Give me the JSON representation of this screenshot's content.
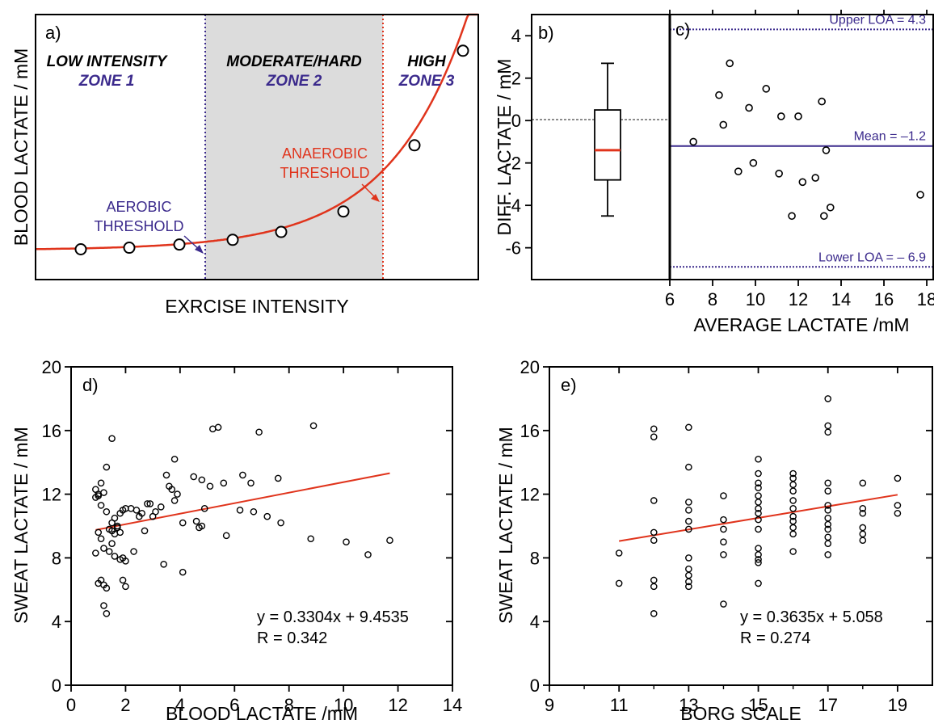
{
  "colors": {
    "red": "#e0341c",
    "purple": "#3b2a8c",
    "gray_zone": "#dcdcdc",
    "black": "#000000"
  },
  "chart_data": [
    {
      "id": "a",
      "type": "line",
      "panel_label": "a)",
      "xlabel": "EXRCISE INTENSITY",
      "ylabel": "BLOOD LACTATE / mM",
      "x_ticks_shown": false,
      "y_ticks_shown": false,
      "zones": [
        {
          "title": "LOW INTENSITY",
          "subtitle": "ZONE 1"
        },
        {
          "title": "MODERATE/HARD",
          "subtitle": "ZONE 2"
        },
        {
          "title": "HIGH",
          "subtitle": "ZONE 3"
        }
      ],
      "thresholds": [
        {
          "lines": [
            "AEROBIC",
            "THRESHOLD"
          ],
          "color": "#3b2a8c"
        },
        {
          "lines": [
            "ANAEROBIC",
            "THRESHOLD"
          ],
          "color": "#e0341c"
        }
      ],
      "points": [
        1.0,
        1.1,
        1.3,
        1.6,
        2.1,
        3.4,
        7.6,
        13.6
      ]
    },
    {
      "id": "b",
      "type": "box",
      "panel_label": "b)",
      "ylabel": "DIFF.  LACTATE / mM",
      "ylim": [
        -7.5,
        5
      ],
      "yticks": [
        -6,
        -4,
        -2,
        0,
        2,
        4
      ],
      "box": {
        "whisker_low": -4.5,
        "q1": -2.8,
        "median": -1.4,
        "q3": 0.5,
        "whisker_high": 2.7
      }
    },
    {
      "id": "c",
      "type": "scatter",
      "panel_label": "c)",
      "xlabel": "AVERAGE LACTATE /mM",
      "xlim": [
        6,
        18.3
      ],
      "ylim": [
        -7.5,
        5
      ],
      "xticks": [
        6,
        8,
        10,
        12,
        14,
        16,
        18
      ],
      "hlines": [
        {
          "value": 4.3,
          "label": "Upper LOA = 4.3",
          "style": "dotted"
        },
        {
          "value": -1.2,
          "label": "Mean = –1.2",
          "style": "solid"
        },
        {
          "value": -6.9,
          "label": "Lower LOA = – 6.9",
          "style": "dotted"
        }
      ],
      "points": [
        [
          7.1,
          -1.0
        ],
        [
          8.3,
          1.2
        ],
        [
          8.5,
          -0.2
        ],
        [
          8.8,
          2.7
        ],
        [
          9.2,
          -2.4
        ],
        [
          9.7,
          0.6
        ],
        [
          9.9,
          -2.0
        ],
        [
          10.5,
          1.5
        ],
        [
          11.1,
          -2.5
        ],
        [
          11.2,
          0.2
        ],
        [
          11.7,
          -4.5
        ],
        [
          12.0,
          0.2
        ],
        [
          12.2,
          -2.9
        ],
        [
          12.8,
          -2.7
        ],
        [
          13.1,
          0.9
        ],
        [
          13.2,
          -4.5
        ],
        [
          13.3,
          -1.4
        ],
        [
          13.5,
          -4.1
        ],
        [
          17.7,
          -3.5
        ]
      ]
    },
    {
      "id": "d",
      "type": "scatter",
      "panel_label": "d)",
      "xlabel": "BLOOD LACTATE /mM",
      "ylabel": "SWEAT LACTATE / mM",
      "xlim": [
        0,
        14
      ],
      "ylim": [
        0,
        20
      ],
      "xticks": [
        0,
        2,
        4,
        6,
        8,
        10,
        12,
        14
      ],
      "yticks": [
        0,
        4,
        8,
        12,
        16,
        20
      ],
      "equation": "y = 0.3304x + 9.4535",
      "r_text": "R = 0.342",
      "fit": {
        "slope": 0.3304,
        "intercept": 9.4535,
        "x_range": [
          0.9,
          11.7
        ]
      },
      "points": [
        [
          0.9,
          12.3
        ],
        [
          0.9,
          11.8
        ],
        [
          1.0,
          11.9
        ],
        [
          1.0,
          12.0
        ],
        [
          1.1,
          12.7
        ],
        [
          1.2,
          12.1
        ],
        [
          0.9,
          8.3
        ],
        [
          1.0,
          9.6
        ],
        [
          1.1,
          9.2
        ],
        [
          1.2,
          8.6
        ],
        [
          1.0,
          6.4
        ],
        [
          1.1,
          6.6
        ],
        [
          1.2,
          6.3
        ],
        [
          1.3,
          6.1
        ],
        [
          1.2,
          5.0
        ],
        [
          1.3,
          4.5
        ],
        [
          1.3,
          13.7
        ],
        [
          1.5,
          15.5
        ],
        [
          1.1,
          11.3
        ],
        [
          1.3,
          10.9
        ],
        [
          1.4,
          9.8
        ],
        [
          1.5,
          10.2
        ],
        [
          1.6,
          10.5
        ],
        [
          1.7,
          10.0
        ],
        [
          1.8,
          10.8
        ],
        [
          1.9,
          11.0
        ],
        [
          1.5,
          9.7
        ],
        [
          1.6,
          9.5
        ],
        [
          1.7,
          9.9
        ],
        [
          1.8,
          9.6
        ],
        [
          1.4,
          8.4
        ],
        [
          1.5,
          8.9
        ],
        [
          1.6,
          8.1
        ],
        [
          1.8,
          7.9
        ],
        [
          1.9,
          8.0
        ],
        [
          2.0,
          7.8
        ],
        [
          1.9,
          6.6
        ],
        [
          2.0,
          6.2
        ],
        [
          2.0,
          11.1
        ],
        [
          2.2,
          11.1
        ],
        [
          2.3,
          8.4
        ],
        [
          2.4,
          11.0
        ],
        [
          2.5,
          10.6
        ],
        [
          2.6,
          10.8
        ],
        [
          2.7,
          9.7
        ],
        [
          2.8,
          11.4
        ],
        [
          2.9,
          11.4
        ],
        [
          3.0,
          10.6
        ],
        [
          3.1,
          10.9
        ],
        [
          3.3,
          11.2
        ],
        [
          3.4,
          7.6
        ],
        [
          3.5,
          13.2
        ],
        [
          3.6,
          12.5
        ],
        [
          3.7,
          12.3
        ],
        [
          3.8,
          14.2
        ],
        [
          3.8,
          11.6
        ],
        [
          3.9,
          12.0
        ],
        [
          4.1,
          10.2
        ],
        [
          4.1,
          7.1
        ],
        [
          4.5,
          13.1
        ],
        [
          4.6,
          10.3
        ],
        [
          4.7,
          9.9
        ],
        [
          4.8,
          10.0
        ],
        [
          4.8,
          12.9
        ],
        [
          4.9,
          11.1
        ],
        [
          5.1,
          12.5
        ],
        [
          5.2,
          16.1
        ],
        [
          5.4,
          16.2
        ],
        [
          5.6,
          12.7
        ],
        [
          5.7,
          9.4
        ],
        [
          6.2,
          11.0
        ],
        [
          6.3,
          13.2
        ],
        [
          6.6,
          12.7
        ],
        [
          6.7,
          10.9
        ],
        [
          6.9,
          15.9
        ],
        [
          7.2,
          10.6
        ],
        [
          7.6,
          13.0
        ],
        [
          7.7,
          10.2
        ],
        [
          8.8,
          9.2
        ],
        [
          8.9,
          16.3
        ],
        [
          10.1,
          9.0
        ],
        [
          10.9,
          8.2
        ],
        [
          11.7,
          9.1
        ]
      ]
    },
    {
      "id": "e",
      "type": "scatter",
      "panel_label": "e)",
      "xlabel": "BORG SCALE",
      "ylabel": "SWEAT LACTATE / mM",
      "xlim": [
        9,
        20
      ],
      "ylim": [
        0,
        20
      ],
      "xticks": [
        9,
        11,
        13,
        15,
        17,
        19
      ],
      "yticks": [
        0,
        4,
        8,
        12,
        16,
        20
      ],
      "equation": "y = 0.3635x + 5.058",
      "r_text": "R = 0.274",
      "fit": {
        "slope": 0.3635,
        "intercept": 5.058,
        "x_range": [
          11,
          19
        ]
      },
      "points": [
        [
          11,
          8.3
        ],
        [
          11,
          6.4
        ],
        [
          12,
          16.1
        ],
        [
          12,
          15.6
        ],
        [
          12,
          11.6
        ],
        [
          12,
          9.6
        ],
        [
          12,
          9.1
        ],
        [
          12,
          6.6
        ],
        [
          12,
          6.2
        ],
        [
          12,
          4.5
        ],
        [
          13,
          16.2
        ],
        [
          13,
          13.7
        ],
        [
          13,
          11.5
        ],
        [
          13,
          11.0
        ],
        [
          13,
          10.3
        ],
        [
          13,
          9.8
        ],
        [
          13,
          8.0
        ],
        [
          13,
          7.3
        ],
        [
          13,
          6.9
        ],
        [
          13,
          6.5
        ],
        [
          13,
          6.2
        ],
        [
          14,
          11.9
        ],
        [
          14,
          10.4
        ],
        [
          14,
          9.8
        ],
        [
          14,
          9.0
        ],
        [
          14,
          8.2
        ],
        [
          14,
          5.1
        ],
        [
          15,
          14.2
        ],
        [
          15,
          13.3
        ],
        [
          15,
          12.7
        ],
        [
          15,
          12.4
        ],
        [
          15,
          11.9
        ],
        [
          15,
          11.5
        ],
        [
          15,
          11.1
        ],
        [
          15,
          10.8
        ],
        [
          15,
          10.4
        ],
        [
          15,
          9.8
        ],
        [
          15,
          8.6
        ],
        [
          15,
          8.2
        ],
        [
          15,
          7.9
        ],
        [
          15,
          7.7
        ],
        [
          15,
          6.4
        ],
        [
          16,
          13.3
        ],
        [
          16,
          13.0
        ],
        [
          16,
          12.6
        ],
        [
          16,
          12.2
        ],
        [
          16,
          11.6
        ],
        [
          16,
          11.1
        ],
        [
          16,
          10.6
        ],
        [
          16,
          10.3
        ],
        [
          16,
          9.9
        ],
        [
          16,
          9.5
        ],
        [
          16,
          8.4
        ],
        [
          17,
          18.0
        ],
        [
          17,
          16.3
        ],
        [
          17,
          15.9
        ],
        [
          17,
          12.7
        ],
        [
          17,
          12.2
        ],
        [
          17,
          11.3
        ],
        [
          17,
          11.0
        ],
        [
          17,
          10.5
        ],
        [
          17,
          10.1
        ],
        [
          17,
          9.8
        ],
        [
          17,
          9.3
        ],
        [
          17,
          8.9
        ],
        [
          17,
          8.2
        ],
        [
          18,
          12.7
        ],
        [
          18,
          11.1
        ],
        [
          18,
          10.8
        ],
        [
          18,
          9.9
        ],
        [
          18,
          9.5
        ],
        [
          18,
          9.1
        ],
        [
          19,
          13.0
        ],
        [
          19,
          11.3
        ],
        [
          19,
          10.8
        ]
      ]
    }
  ]
}
